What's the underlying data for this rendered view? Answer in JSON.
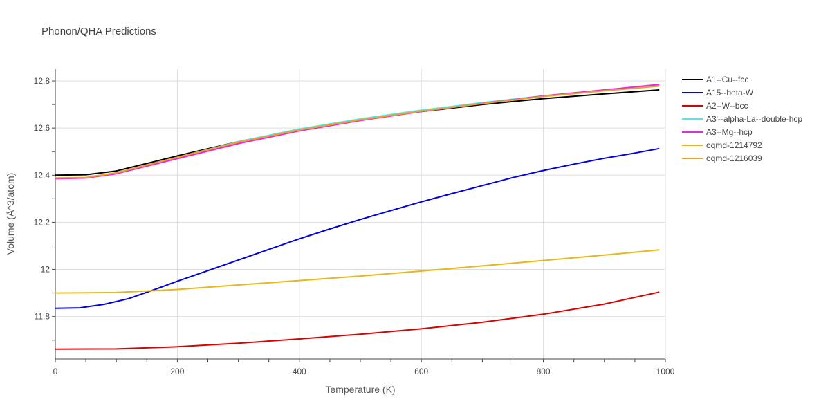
{
  "chart_data": {
    "type": "line",
    "title": "Phonon/QHA Predictions",
    "xlabel": "Temperature (K)",
    "ylabel": "Volume (Å^3/atom)",
    "xlim": [
      0,
      1000
    ],
    "ylim": [
      11.62,
      12.85
    ],
    "xticks": [
      0,
      200,
      400,
      600,
      800,
      1000
    ],
    "yticks": [
      11.8,
      12,
      12.2,
      12.4,
      12.6,
      12.8
    ],
    "ytick_labels": [
      "11.8",
      "12",
      "12.2",
      "12.4",
      "12.6",
      "12.8"
    ],
    "grid": true,
    "legend_position": "right",
    "series": [
      {
        "name": "A1--Cu--fcc",
        "color": "#000000",
        "x": [
          0,
          50,
          100,
          200,
          300,
          400,
          500,
          600,
          700,
          800,
          900,
          990
        ],
        "y": [
          12.4,
          12.402,
          12.418,
          12.482,
          12.542,
          12.595,
          12.636,
          12.67,
          12.7,
          12.725,
          12.745,
          12.762
        ]
      },
      {
        "name": "A15--beta-W",
        "color": "#0000dd",
        "x": [
          0,
          40,
          80,
          120,
          160,
          200,
          250,
          300,
          350,
          400,
          450,
          500,
          550,
          600,
          650,
          700,
          750,
          800,
          850,
          900,
          950,
          990
        ],
        "y": [
          11.835,
          11.837,
          11.852,
          11.876,
          11.912,
          11.95,
          11.995,
          12.04,
          12.085,
          12.13,
          12.172,
          12.212,
          12.25,
          12.287,
          12.322,
          12.356,
          12.39,
          12.42,
          12.447,
          12.472,
          12.494,
          12.513
        ]
      },
      {
        "name": "A2--W--bcc",
        "color": "#dd0000",
        "x": [
          0,
          100,
          200,
          300,
          400,
          500,
          600,
          700,
          800,
          900,
          990
        ],
        "y": [
          11.662,
          11.663,
          11.672,
          11.687,
          11.705,
          11.725,
          11.748,
          11.776,
          11.81,
          11.853,
          11.904
        ]
      },
      {
        "name": "A3'--alpha-La--double-hcp",
        "color": "#44eeee",
        "x": [
          0,
          50,
          100,
          200,
          300,
          400,
          500,
          600,
          700,
          800,
          900,
          990
        ],
        "y": [
          12.388,
          12.39,
          12.41,
          12.476,
          12.542,
          12.596,
          12.639,
          12.676,
          12.708,
          12.737,
          12.762,
          12.782
        ]
      },
      {
        "name": "A3--Mg--hcp",
        "color": "#ee22ee",
        "x": [
          0,
          50,
          100,
          200,
          300,
          400,
          500,
          600,
          700,
          800,
          900,
          990
        ],
        "y": [
          12.385,
          12.388,
          12.406,
          12.47,
          12.534,
          12.588,
          12.632,
          12.67,
          12.705,
          12.736,
          12.762,
          12.785
        ]
      },
      {
        "name": "oqmd-1214792",
        "color": "#e8b81a",
        "x": [
          0,
          100,
          200,
          300,
          400,
          500,
          600,
          700,
          800,
          900,
          990
        ],
        "y": [
          11.9,
          11.902,
          11.915,
          11.934,
          11.953,
          11.972,
          11.993,
          12.015,
          12.038,
          12.061,
          12.083
        ]
      },
      {
        "name": "oqmd-1216039",
        "color": "#f0a020",
        "x": [
          0,
          50,
          100,
          200,
          300,
          400,
          500,
          600,
          700,
          800,
          900,
          990
        ],
        "y": [
          12.388,
          12.39,
          12.41,
          12.476,
          12.54,
          12.592,
          12.635,
          12.672,
          12.704,
          12.734,
          12.758,
          12.778
        ]
      }
    ]
  }
}
